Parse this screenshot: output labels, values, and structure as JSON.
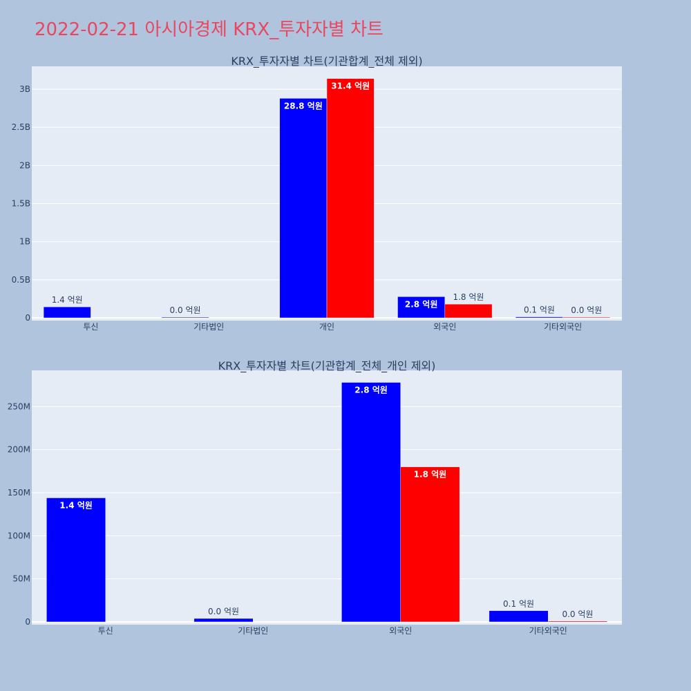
{
  "page": {
    "title": "2022-02-21 아시아경제 KRX_투자자별 차트"
  },
  "colors": {
    "background": "#b0c4de",
    "plot_background": "#e5ecf6",
    "title": "#e8475f",
    "series_1": "#0000ff",
    "series_2": "#ff0000"
  },
  "chart_data": [
    {
      "type": "bar",
      "title": "KRX_투자자별 차트(기관합계_전체 제외)",
      "categories": [
        "투신",
        "기타법인",
        "개인",
        "외국인",
        "기타외국인"
      ],
      "ylim": [
        0,
        3300000000
      ],
      "yticks": [
        0,
        500000000,
        1000000000,
        1500000000,
        2000000000,
        2500000000,
        3000000000
      ],
      "ytick_labels": [
        "0",
        "0.5B",
        "1B",
        "1.5B",
        "2B",
        "2.5B",
        "3B"
      ],
      "grid": true,
      "series": [
        {
          "color": "#0000ff",
          "values": [
            144000000,
            4000000,
            2880000000,
            278000000,
            13000000
          ],
          "labels": [
            "1.4 억원",
            "0.0 억원",
            "28.8 억원",
            "2.8 억원",
            "0.1 억원"
          ]
        },
        {
          "color": "#ff0000",
          "values": [
            0,
            0,
            3140000000,
            180000000,
            1000000
          ],
          "labels": [
            "",
            "",
            "31.4 억원",
            "1.8 억원",
            "0.0 억원"
          ]
        }
      ]
    },
    {
      "type": "bar",
      "title": "KRX_투자자별 차트(기관합계_전체_개인 제외)",
      "categories": [
        "투신",
        "기타법인",
        "외국인",
        "기타외국인"
      ],
      "ylim": [
        0,
        292000000
      ],
      "yticks": [
        0,
        50000000,
        100000000,
        150000000,
        200000000,
        250000000
      ],
      "ytick_labels": [
        "0",
        "50M",
        "100M",
        "150M",
        "200M",
        "250M"
      ],
      "grid": true,
      "series": [
        {
          "color": "#0000ff",
          "values": [
            144000000,
            4000000,
            278000000,
            13000000
          ],
          "labels": [
            "1.4 억원",
            "0.0 억원",
            "2.8 억원",
            "0.1 억원"
          ]
        },
        {
          "color": "#ff0000",
          "values": [
            0,
            0,
            180000000,
            1000000
          ],
          "labels": [
            "",
            "",
            "1.8 억원",
            "0.0 억원"
          ]
        }
      ]
    }
  ]
}
